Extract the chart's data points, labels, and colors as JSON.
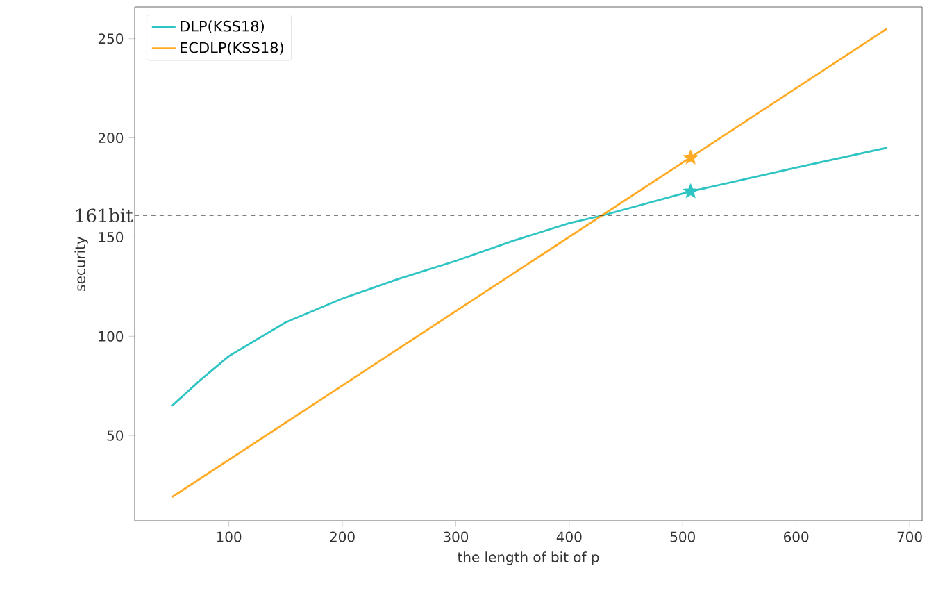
{
  "chart_data": {
    "type": "line",
    "xlabel": "the length of bit of p",
    "ylabel": "security",
    "xlim": [
      17,
      711
    ],
    "ylim": [
      7,
      266
    ],
    "xticks": [
      100,
      200,
      300,
      400,
      500,
      600,
      700
    ],
    "yticks": [
      50,
      100,
      150,
      200,
      250
    ],
    "grid": false,
    "legend": "top left",
    "series": [
      {
        "name": "DLP(KSS18)",
        "color": "#2ec4c4",
        "x": [
          50,
          75,
          100,
          150,
          200,
          250,
          300,
          350,
          400,
          430,
          507,
          600,
          680
        ],
        "values": [
          65,
          78,
          90,
          107,
          119,
          129,
          138,
          148,
          157,
          161,
          173,
          185,
          195
        ]
      },
      {
        "name": "ECDLP(KSS18)",
        "color": "#ffaa22",
        "x": [
          50,
          680
        ],
        "values": [
          19,
          255
        ]
      },
      {
        "color": "#2ec4c4",
        "type": "scatter",
        "marker": "star",
        "x": [
          507
        ],
        "values": [
          173
        ]
      },
      {
        "color": "#ffaa22",
        "type": "scatter",
        "marker": "star",
        "x": [
          507
        ],
        "values": [
          190
        ]
      }
    ],
    "ref_lines": [
      {
        "axis": "y",
        "value": 161,
        "label": "161bit",
        "color": "#000000",
        "line_style": "dashed"
      }
    ]
  }
}
